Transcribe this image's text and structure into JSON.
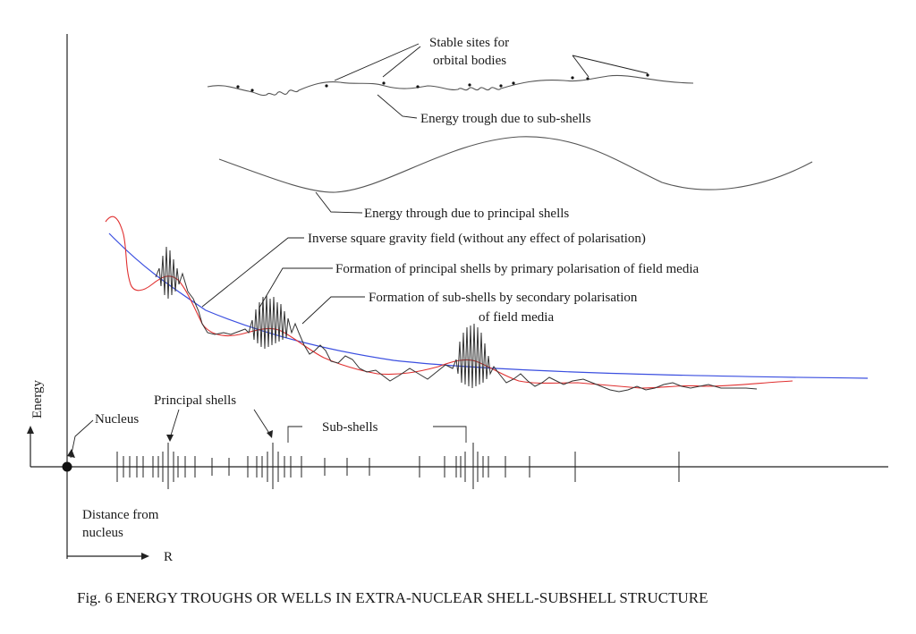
{
  "labels": {
    "stable_sites": [
      "Stable sites for",
      "orbital bodies"
    ],
    "subshell_trough": "Energy trough due to sub-shells",
    "principal_trough": "Energy through due to principal shells",
    "gravity_field": "Inverse square gravity field (without any effect of polarisation)",
    "principal_formation": "Formation of principal shells by primary polarisation of field media",
    "subshell_formation": [
      "Formation of sub-shells by secondary polarisation",
      "of field media"
    ],
    "energy_axis": "Energy",
    "nucleus": "Nucleus",
    "principal_shells": "Principal shells",
    "sub_shells": "Sub-shells",
    "distance": [
      "Distance from",
      "nucleus"
    ],
    "r_axis": "R"
  },
  "caption": "Fig. 6 ENERGY TROUGHS OR WELLS IN EXTRA-NUCLEAR SHELL-SUBSHELL STRUCTURE",
  "colors": {
    "gravity_curve": "#3b4fe0",
    "polarisation_curve": "#e03030",
    "trough_curves": "#555555",
    "ink": "#1a1a1a"
  }
}
